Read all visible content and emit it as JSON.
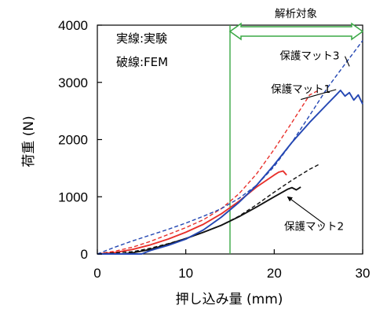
{
  "chart_data": {
    "type": "line",
    "title": "",
    "xlabel": "押し込み量 (mm)",
    "ylabel": "荷重 (N)",
    "xlim": [
      0,
      30
    ],
    "ylim": [
      0,
      4000
    ],
    "xticks": [
      0,
      10,
      20,
      30
    ],
    "yticks": [
      0,
      1000,
      2000,
      3000,
      4000
    ],
    "grid": false,
    "notes": [
      "実線:実験",
      "破線:FEM"
    ],
    "analysis_region": {
      "label": "解析対象",
      "x_start": 15,
      "x_end": 30
    },
    "curve_labels": [
      {
        "text": "保護マット3",
        "x": 24,
        "y": 3400,
        "arrow_to_x": 28.5,
        "arrow_to_y": 3280
      },
      {
        "text": "保護マット1",
        "x": 23,
        "y": 2820,
        "arrow_to_x": 23,
        "arrow_to_y": 2700
      },
      {
        "text": "保護マット2",
        "x": 24.5,
        "y": 420,
        "arrow_from_x": 25.7,
        "arrow_from_y": 520,
        "arrow_to_x": 21.5,
        "arrow_to_y": 1000
      }
    ],
    "series": [
      {
        "name": "保護マット1",
        "style": "solid",
        "color": "#e8302b",
        "x": [
          0,
          2,
          4,
          6,
          8,
          10,
          12,
          14,
          16,
          18,
          20,
          20.5,
          21,
          21.4
        ],
        "y": [
          0,
          25,
          80,
          160,
          260,
          380,
          520,
          700,
          920,
          1170,
          1380,
          1430,
          1450,
          1380
        ]
      },
      {
        "name": "保護マット1",
        "style": "dashed",
        "color": "#e8302b",
        "x": [
          0,
          2,
          4,
          6,
          8,
          10,
          12,
          14,
          16,
          18,
          20,
          22,
          24,
          25
        ],
        "y": [
          0,
          50,
          120,
          220,
          340,
          460,
          600,
          790,
          1050,
          1400,
          1830,
          2300,
          2780,
          2860
        ]
      },
      {
        "name": "保護マット2",
        "style": "solid",
        "color": "#111111",
        "x": [
          0,
          3,
          4,
          6,
          8,
          10,
          12,
          14,
          16,
          18,
          20,
          21.5,
          22,
          22.5,
          23
        ],
        "y": [
          0,
          0,
          20,
          80,
          170,
          270,
          380,
          500,
          650,
          820,
          1000,
          1130,
          1160,
          1120,
          1170
        ]
      },
      {
        "name": "保護マット2",
        "style": "dashed",
        "color": "#111111",
        "x": [
          0,
          4,
          6,
          8,
          10,
          12,
          14,
          16,
          18,
          20,
          22,
          24,
          25
        ],
        "y": [
          0,
          40,
          100,
          180,
          270,
          380,
          500,
          660,
          860,
          1080,
          1290,
          1480,
          1560
        ]
      },
      {
        "name": "保護マット3",
        "style": "solid",
        "color": "#2447b3",
        "x": [
          0,
          5,
          6,
          8,
          10,
          12,
          14,
          16,
          18,
          20,
          22,
          24,
          26,
          27,
          27.5,
          28,
          28.5,
          29,
          29.5,
          30
        ],
        "y": [
          0,
          0,
          60,
          150,
          260,
          420,
          640,
          900,
          1200,
          1560,
          1950,
          2300,
          2620,
          2780,
          2860,
          2760,
          2820,
          2690,
          2780,
          2620
        ]
      },
      {
        "name": "保護マット3",
        "style": "dashed",
        "color": "#2447b3",
        "x": [
          0,
          2,
          4,
          6,
          8,
          10,
          12,
          14,
          16,
          18,
          20,
          22,
          24,
          26,
          28,
          30
        ],
        "y": [
          0,
          120,
          230,
          330,
          430,
          540,
          660,
          790,
          970,
          1200,
          1530,
          1950,
          2420,
          2900,
          3320,
          3730
        ]
      }
    ]
  }
}
